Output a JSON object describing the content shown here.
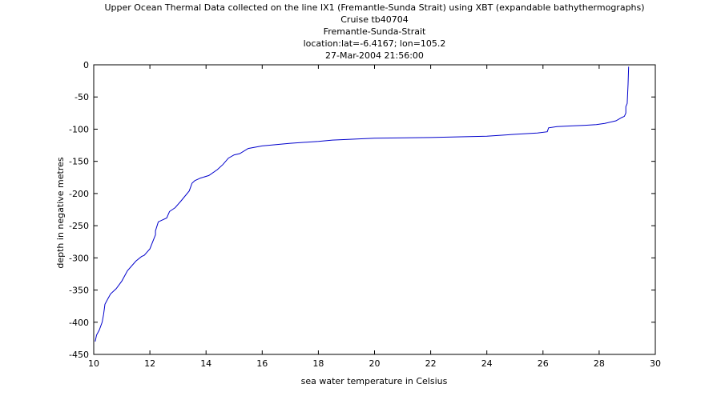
{
  "chart_data": {
    "type": "line",
    "title_lines": [
      "Upper Ocean Thermal Data collected on the line IX1 (Fremantle-Sunda Strait) using XBT (expandable bathythermographs)",
      "Cruise tb40704",
      "Fremantle-Sunda-Strait",
      "location:lat=-6.4167; lon=105.2",
      "27-Mar-2004 21:56:00"
    ],
    "xlabel": "sea water temperature in Celsius",
    "ylabel": "depth in negative metres",
    "xlim": [
      10,
      30
    ],
    "ylim": [
      -450,
      0
    ],
    "xticks": [
      "10",
      "12",
      "14",
      "16",
      "18",
      "20",
      "22",
      "24",
      "26",
      "28",
      "30"
    ],
    "yticks": [
      "0",
      "-50",
      "-100",
      "-150",
      "-200",
      "-250",
      "-300",
      "-350",
      "-400",
      "-450"
    ],
    "line_color": "#0000cc",
    "grid": false,
    "series": [
      {
        "x": [
          29.05,
          29.03,
          29.0,
          28.95,
          28.95,
          28.9,
          28.8,
          28.6,
          28.2,
          27.9,
          27.5,
          27.0,
          26.5,
          26.2,
          26.15,
          25.8,
          25.0,
          24.0,
          22.0,
          20.0,
          18.5,
          18.0,
          17.0,
          16.5,
          16.0,
          15.5,
          15.2,
          15.0,
          14.8,
          14.6,
          14.4,
          14.1,
          13.8,
          13.6,
          13.5,
          13.4,
          13.1,
          12.9,
          12.7,
          12.6,
          12.3,
          12.2,
          12.2,
          12.0,
          11.8,
          11.7,
          11.5,
          11.2,
          11.0,
          10.8,
          10.6,
          10.5,
          10.4,
          10.35,
          10.3,
          10.2,
          10.1,
          10.05
        ],
        "y": [
          -3,
          -30,
          -60,
          -65,
          -75,
          -80,
          -82,
          -87,
          -91,
          -93,
          -94,
          -95,
          -96,
          -98,
          -104,
          -106,
          -108,
          -111,
          -113,
          -114,
          -117,
          -119,
          -122,
          -124,
          -126,
          -130,
          -138,
          -140,
          -145,
          -155,
          -163,
          -172,
          -176,
          -180,
          -184,
          -196,
          -212,
          -222,
          -228,
          -238,
          -244,
          -258,
          -264,
          -286,
          -296,
          -298,
          -305,
          -320,
          -336,
          -348,
          -356,
          -364,
          -372,
          -388,
          -400,
          -412,
          -420,
          -430
        ]
      }
    ]
  }
}
